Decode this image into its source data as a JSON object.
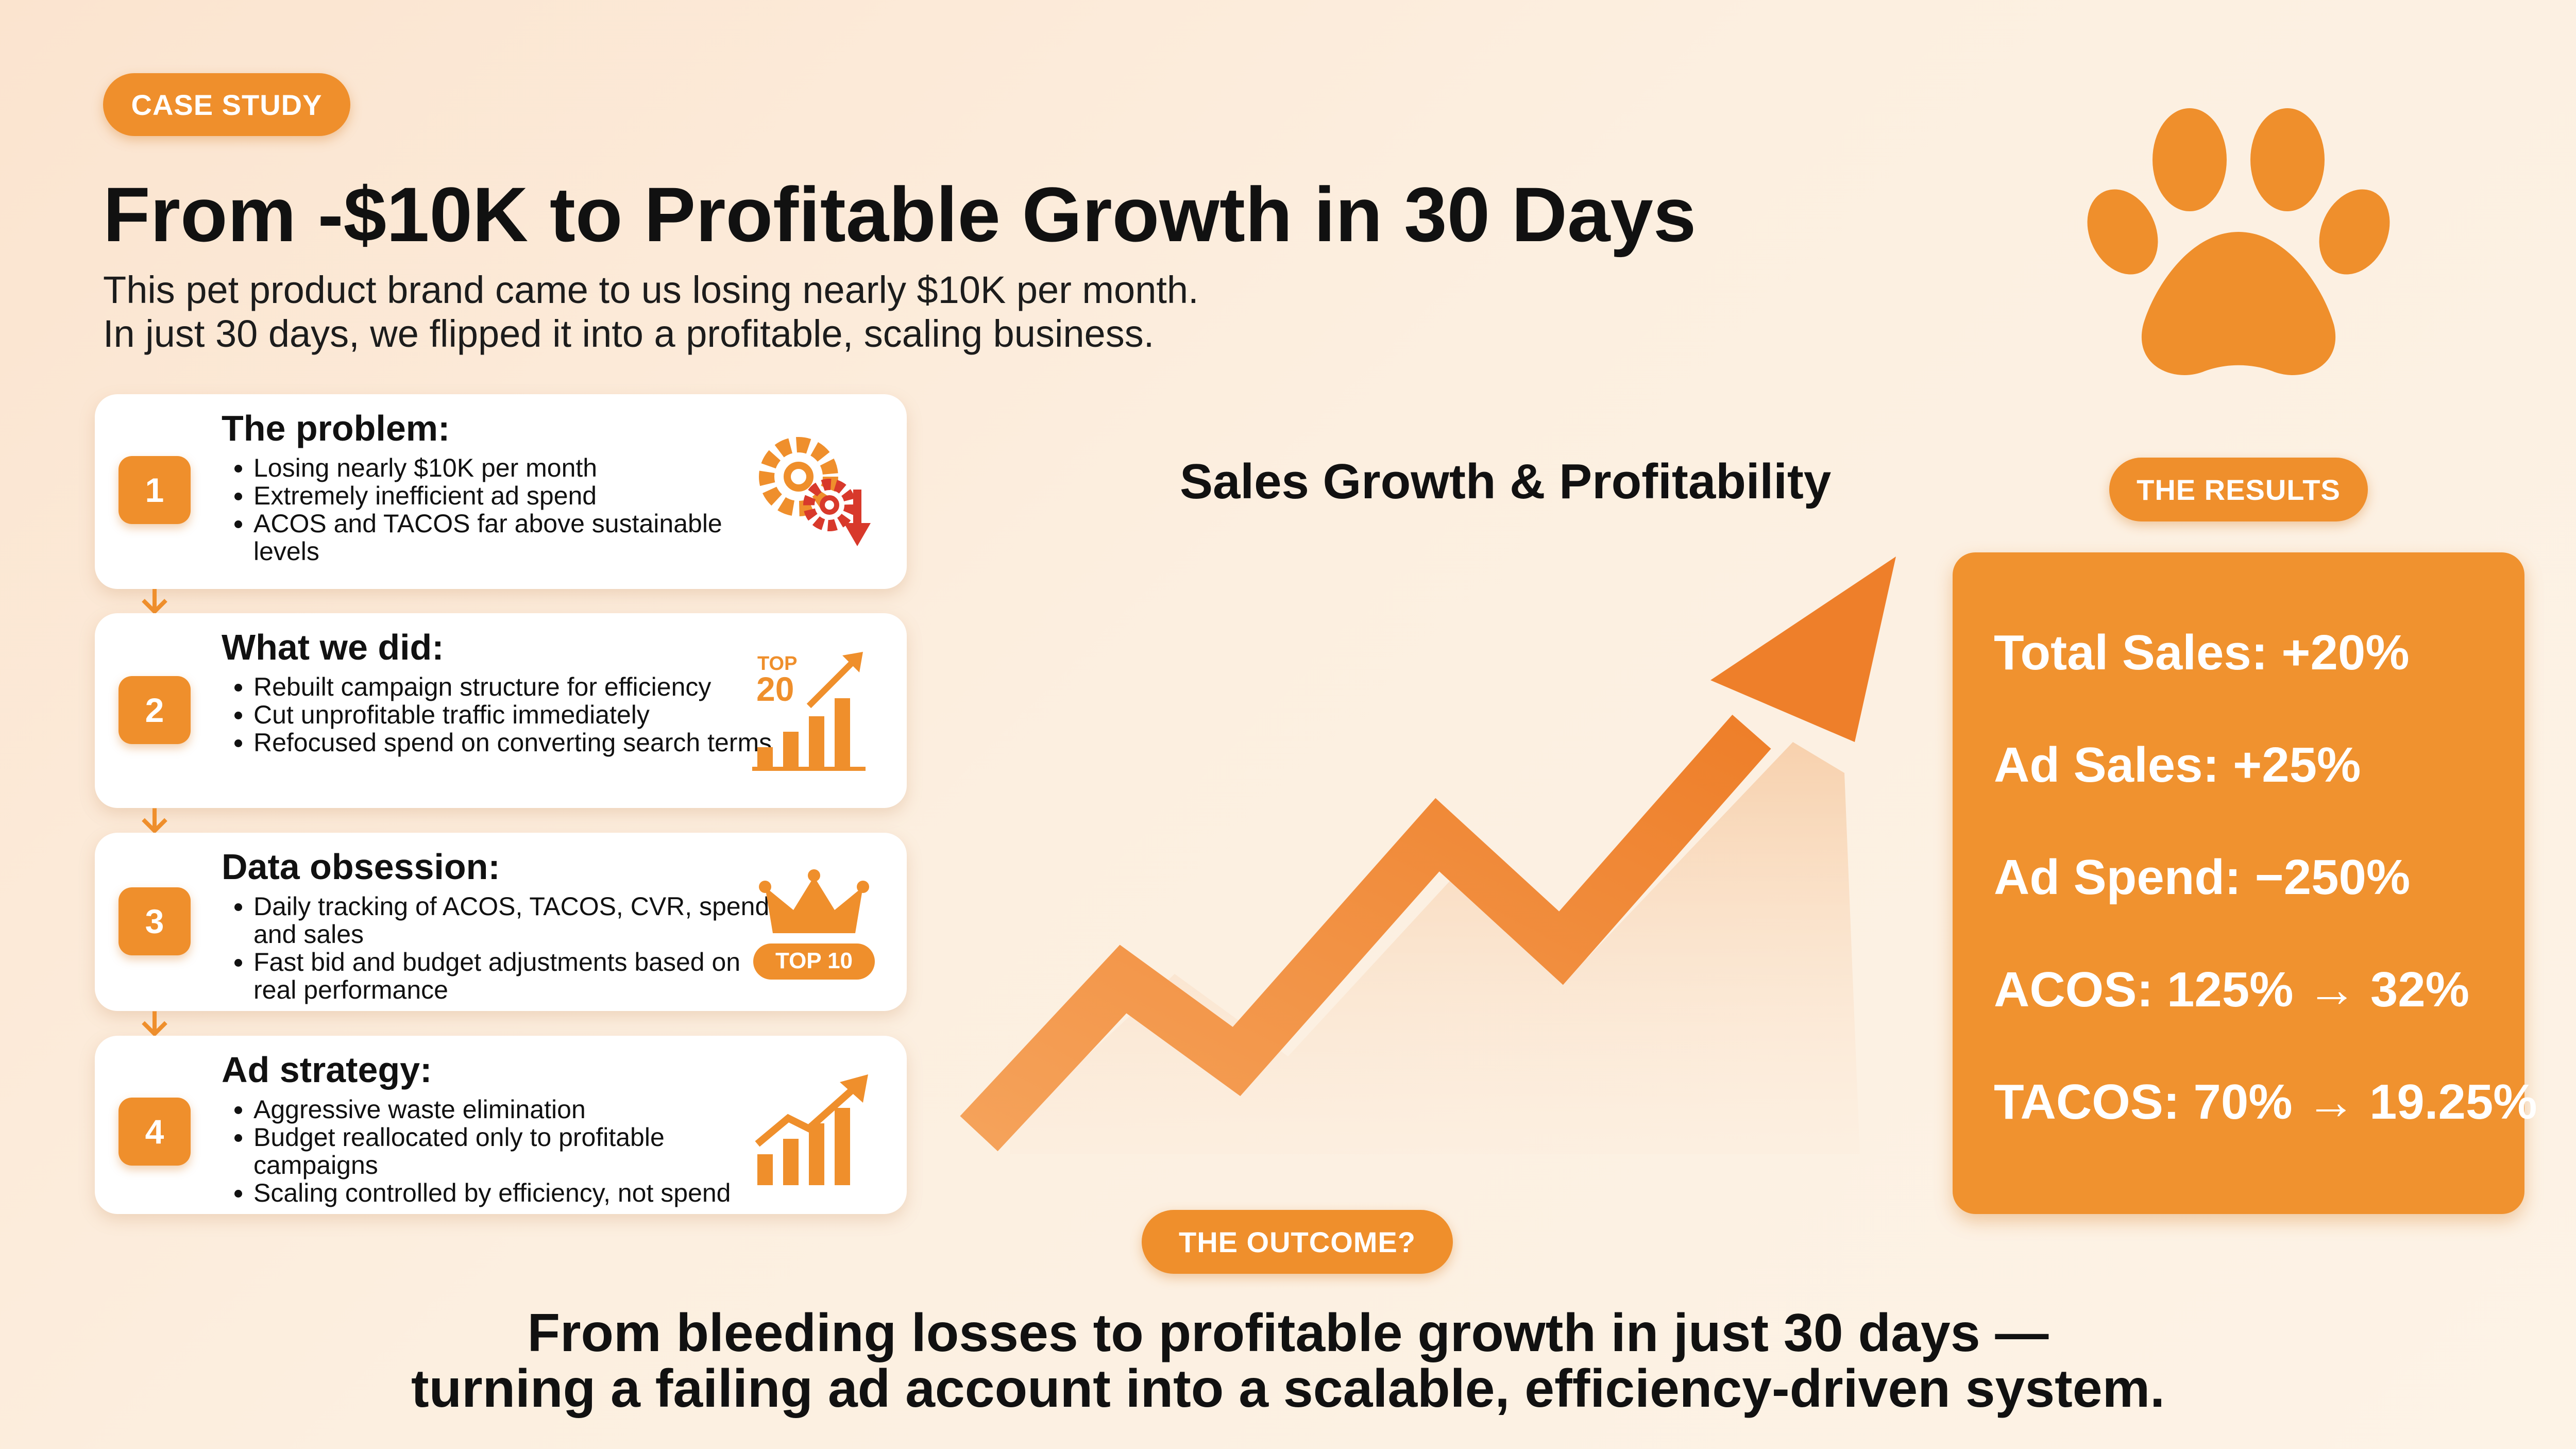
{
  "badge": "CASE STUDY",
  "title": "From -$10K to Profitable Growth in 30 Days",
  "subtitle_lines": [
    "This pet product brand came to us losing nearly $10K per month.",
    "In just 30 days, we flipped it into a profitable, scaling business."
  ],
  "steps": [
    {
      "number": "1",
      "title": "The problem:",
      "bullets": [
        "Losing nearly $10K per month",
        "Extremely inefficient ad spend",
        "ACOS and TACOS far above sustainable levels"
      ],
      "icon": "gears-down-arrow-icon"
    },
    {
      "number": "2",
      "title": "What we did:",
      "bullets": [
        "Rebuilt campaign structure for efficiency",
        "Cut unprofitable traffic immediately",
        "Refocused spend on converting search terms"
      ],
      "icon": "top-20-chart-icon",
      "icon_text": [
        "TOP",
        "20"
      ]
    },
    {
      "number": "3",
      "title": "Data obsession:",
      "bullets": [
        "Daily tracking of ACOS, TACOS, CVR, spend, and sales",
        "Fast bid and budget adjustments based on real performance"
      ],
      "icon": "crown-top-10-icon",
      "icon_text": [
        "TOP 10"
      ]
    },
    {
      "number": "4",
      "title": "Ad strategy:",
      "bullets": [
        "Aggressive waste elimination",
        "Budget reallocated only to profitable campaigns",
        "Scaling controlled by efficiency, not spend"
      ],
      "icon": "growth-bars-icon"
    }
  ],
  "chart": {
    "title": "Sales Growth & Profitability"
  },
  "chart_data": {
    "type": "line",
    "title": "Sales Growth & Profitability",
    "xlabel": "",
    "ylabel": "",
    "values": [
      1,
      3,
      2,
      4,
      3,
      6
    ]
  },
  "results_label": "THE RESULTS",
  "results": [
    "Total Sales: +20%",
    "Ad Sales: +25%",
    "Ad Spend: −250%",
    "ACOS: 125% → 32%",
    "TACOS: 70% → 19.25%"
  ],
  "outcome_label": "THE OUTCOME?",
  "outcome_lines": [
    "From bleeding losses to profitable growth in just 30 days —",
    "turning a failing ad account into a scalable, efficiency-driven system."
  ],
  "colors": {
    "accent": "#ef8f2c",
    "accent_dark": "#d9701c",
    "arrow_red": "#d8392b"
  }
}
